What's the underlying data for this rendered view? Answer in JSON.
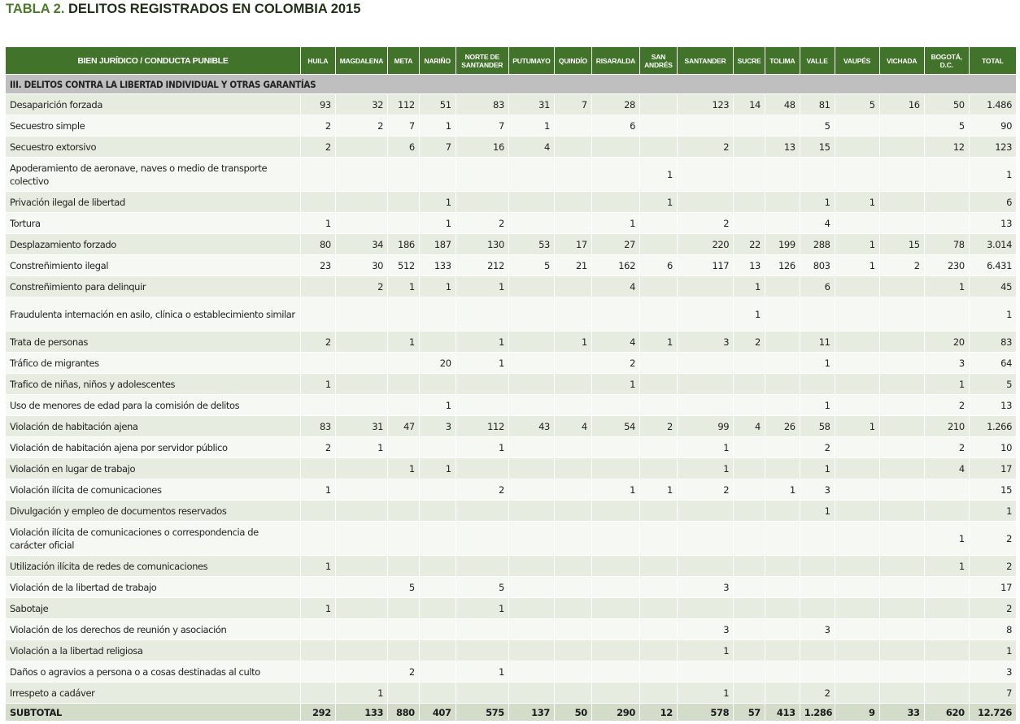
{
  "title": {
    "label": "TABLA 2.",
    "text": "DELITOS REGISTRADOS EN COLOMBIA 2015"
  },
  "header": {
    "first_column": "BIEN JURÍDICO / CONDUCTA PUNIBLE",
    "columns": [
      "HUILA",
      "MAGDALENA",
      "META",
      "NARIÑO",
      "NORTE DE SANTANDER",
      "PUTUMAYO",
      "QUINDÍO",
      "RISARALDA",
      "SAN ANDRÉS",
      "SANTANDER",
      "SUCRE",
      "TOLIMA",
      "VALLE",
      "VAUPÉS",
      "VICHADA",
      "BOGOTÁ, D.C.",
      "TOTAL"
    ]
  },
  "section": "III. DELITOS CONTRA LA LIBERTAD INDIVIDUAL Y OTRAS GARANTÍAS",
  "rows": [
    {
      "label": "Desaparición forzada",
      "cells": [
        "93",
        "32",
        "112",
        "51",
        "83",
        "31",
        "7",
        "28",
        "",
        "123",
        "14",
        "48",
        "81",
        "5",
        "16",
        "50",
        "1.486"
      ]
    },
    {
      "label": "Secuestro simple",
      "cells": [
        "2",
        "2",
        "7",
        "1",
        "7",
        "1",
        "",
        "6",
        "",
        "",
        "",
        "",
        "5",
        "",
        "",
        "5",
        "90"
      ]
    },
    {
      "label": "Secuestro extorsivo",
      "cells": [
        "2",
        "",
        "6",
        "7",
        "16",
        "4",
        "",
        "",
        "",
        "2",
        "",
        "13",
        "15",
        "",
        "",
        "12",
        "123"
      ]
    },
    {
      "label": "Apoderamiento de aeronave, naves o medio de transporte colectivo",
      "cells": [
        "",
        "",
        "",
        "",
        "",
        "",
        "",
        "",
        "1",
        "",
        "",
        "",
        "",
        "",
        "",
        "",
        "1"
      ]
    },
    {
      "label": "Privación ilegal de libertad",
      "cells": [
        "",
        "",
        "",
        "1",
        "",
        "",
        "",
        "",
        "1",
        "",
        "",
        "",
        "1",
        "1",
        "",
        "",
        "6"
      ]
    },
    {
      "label": "Tortura",
      "cells": [
        "1",
        "",
        "",
        "1",
        "2",
        "",
        "",
        "1",
        "",
        "2",
        "",
        "",
        "4",
        "",
        "",
        "",
        "13"
      ]
    },
    {
      "label": "Desplazamiento forzado",
      "cells": [
        "80",
        "34",
        "186",
        "187",
        "130",
        "53",
        "17",
        "27",
        "",
        "220",
        "22",
        "199",
        "288",
        "1",
        "15",
        "78",
        "3.014"
      ]
    },
    {
      "label": "Constreñimiento ilegal",
      "cells": [
        "23",
        "30",
        "512",
        "133",
        "212",
        "5",
        "21",
        "162",
        "6",
        "117",
        "13",
        "126",
        "803",
        "1",
        "2",
        "230",
        "6.431"
      ]
    },
    {
      "label": "Constreñimiento para delinquir",
      "cells": [
        "",
        "2",
        "1",
        "1",
        "1",
        "",
        "",
        "4",
        "",
        "",
        "1",
        "",
        "6",
        "",
        "",
        "1",
        "45"
      ]
    },
    {
      "label": "Fraudulenta internación en asilo, clínica o establecimiento similar",
      "cells": [
        "",
        "",
        "",
        "",
        "",
        "",
        "",
        "",
        "",
        "",
        "1",
        "",
        "",
        "",
        "",
        "",
        "1"
      ]
    },
    {
      "label": "Trata de personas",
      "cells": [
        "2",
        "",
        "1",
        "",
        "1",
        "",
        "1",
        "4",
        "1",
        "3",
        "2",
        "",
        "11",
        "",
        "",
        "20",
        "83"
      ]
    },
    {
      "label": "Tráfico de migrantes",
      "cells": [
        "",
        "",
        "",
        "20",
        "1",
        "",
        "",
        "2",
        "",
        "",
        "",
        "",
        "1",
        "",
        "",
        "3",
        "64"
      ]
    },
    {
      "label": "Trafico de niñas, niños y adolescentes",
      "cells": [
        "1",
        "",
        "",
        "",
        "",
        "",
        "",
        "1",
        "",
        "",
        "",
        "",
        "",
        "",
        "",
        "1",
        "5"
      ]
    },
    {
      "label": "Uso de menores de edad para la comisión de delitos",
      "cells": [
        "",
        "",
        "",
        "1",
        "",
        "",
        "",
        "",
        "",
        "",
        "",
        "",
        "1",
        "",
        "",
        "2",
        "13"
      ]
    },
    {
      "label": "Violación de habitación ajena",
      "cells": [
        "83",
        "31",
        "47",
        "3",
        "112",
        "43",
        "4",
        "54",
        "2",
        "99",
        "4",
        "26",
        "58",
        "1",
        "",
        "210",
        "1.266"
      ]
    },
    {
      "label": "Violación de habitación ajena por servidor público",
      "cells": [
        "2",
        "1",
        "",
        "",
        "1",
        "",
        "",
        "",
        "",
        "1",
        "",
        "",
        "2",
        "",
        "",
        "2",
        "10"
      ]
    },
    {
      "label": "Violación en lugar de trabajo",
      "cells": [
        "",
        "",
        "1",
        "1",
        "",
        "",
        "",
        "",
        "",
        "1",
        "",
        "",
        "1",
        "",
        "",
        "4",
        "17"
      ]
    },
    {
      "label": "Violación ilícita de comunicaciones",
      "cells": [
        "1",
        "",
        "",
        "",
        "2",
        "",
        "",
        "1",
        "1",
        "2",
        "",
        "1",
        "3",
        "",
        "",
        "",
        "15"
      ]
    },
    {
      "label": "Divulgación y empleo de documentos reservados",
      "cells": [
        "",
        "",
        "",
        "",
        "",
        "",
        "",
        "",
        "",
        "",
        "",
        "",
        "1",
        "",
        "",
        "",
        "1"
      ]
    },
    {
      "label": "Violación ilícita de comunicaciones o correspondencia de carácter oficial",
      "cells": [
        "",
        "",
        "",
        "",
        "",
        "",
        "",
        "",
        "",
        "",
        "",
        "",
        "",
        "",
        "",
        "1",
        "2"
      ]
    },
    {
      "label": "Utilización ilícita de redes de comunicaciones",
      "cells": [
        "1",
        "",
        "",
        "",
        "",
        "",
        "",
        "",
        "",
        "",
        "",
        "",
        "",
        "",
        "",
        "1",
        "2"
      ]
    },
    {
      "label": "Violación de la libertad de trabajo",
      "cells": [
        "",
        "",
        "5",
        "",
        "5",
        "",
        "",
        "",
        "",
        "3",
        "",
        "",
        "",
        "",
        "",
        "",
        "17"
      ]
    },
    {
      "label": "Sabotaje",
      "cells": [
        "1",
        "",
        "",
        "",
        "1",
        "",
        "",
        "",
        "",
        "",
        "",
        "",
        "",
        "",
        "",
        "",
        "2"
      ]
    },
    {
      "label": "Violación de los derechos de reunión y asociación",
      "cells": [
        "",
        "",
        "",
        "",
        "",
        "",
        "",
        "",
        "",
        "3",
        "",
        "",
        "3",
        "",
        "",
        "",
        "8"
      ]
    },
    {
      "label": "Violación a la libertad religiosa",
      "cells": [
        "",
        "",
        "",
        "",
        "",
        "",
        "",
        "",
        "",
        "1",
        "",
        "",
        "",
        "",
        "",
        "",
        "1"
      ]
    },
    {
      "label": "Daños o agravios a persona o a cosas destinadas al culto",
      "cells": [
        "",
        "",
        "2",
        "",
        "1",
        "",
        "",
        "",
        "",
        "",
        "",
        "",
        "",
        "",
        "",
        "",
        "3"
      ]
    },
    {
      "label": "Irrespeto a cadáver",
      "cells": [
        "",
        "1",
        "",
        "",
        "",
        "",
        "",
        "",
        "",
        "1",
        "",
        "",
        "2",
        "",
        "",
        "",
        "7"
      ]
    }
  ],
  "subtotal": {
    "label": "SUBTOTAL",
    "cells": [
      "292",
      "133",
      "880",
      "407",
      "575",
      "137",
      "50",
      "290",
      "12",
      "578",
      "57",
      "413",
      "1.286",
      "9",
      "33",
      "620",
      "12.726"
    ]
  }
}
